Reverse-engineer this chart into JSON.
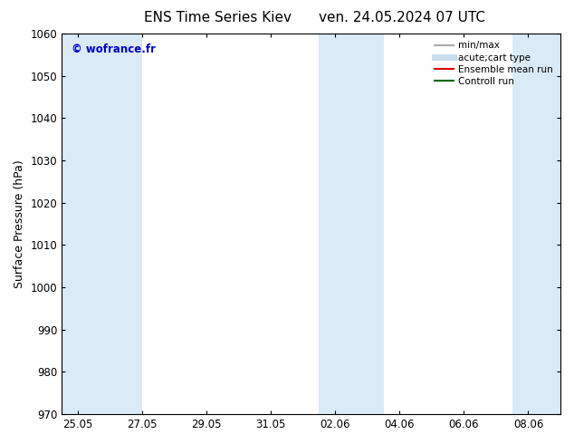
{
  "title_left": "ENS Time Series Kiev",
  "title_right": "ven. 24.05.2024 07 UTC",
  "ylabel": "Surface Pressure (hPa)",
  "ylim": [
    970,
    1060
  ],
  "yticks": [
    970,
    980,
    990,
    1000,
    1010,
    1020,
    1030,
    1040,
    1050,
    1060
  ],
  "xtick_labels": [
    "25.05",
    "27.05",
    "29.05",
    "31.05",
    "02.06",
    "04.06",
    "06.06",
    "08.06"
  ],
  "xtick_positions": [
    0,
    2,
    4,
    6,
    8,
    10,
    12,
    14
  ],
  "shaded_bands": [
    {
      "x_start": -0.5,
      "x_end": 2.0
    },
    {
      "x_start": 7.5,
      "x_end": 9.5
    },
    {
      "x_start": 13.5,
      "x_end": 15.0
    }
  ],
  "shaded_color": "#daeaf7",
  "background_color": "#ffffff",
  "watermark_text": "© wofrance.fr",
  "watermark_color": "#0000cc",
  "legend_items": [
    {
      "label": "min/max",
      "color": "#aaaaaa",
      "lw": 1.5,
      "style": "solid"
    },
    {
      "label": "acute;cart type",
      "color": "#c8dced",
      "lw": 5,
      "style": "solid"
    },
    {
      "label": "Ensemble mean run",
      "color": "#dd0000",
      "lw": 1.5,
      "style": "solid"
    },
    {
      "label": "Controll run",
      "color": "#006600",
      "lw": 1.5,
      "style": "solid"
    }
  ],
  "title_fontsize": 11,
  "tick_fontsize": 8.5,
  "ylabel_fontsize": 9,
  "watermark_fontsize": 8.5,
  "legend_fontsize": 7.5,
  "x_min": -0.5,
  "x_max": 15.0
}
